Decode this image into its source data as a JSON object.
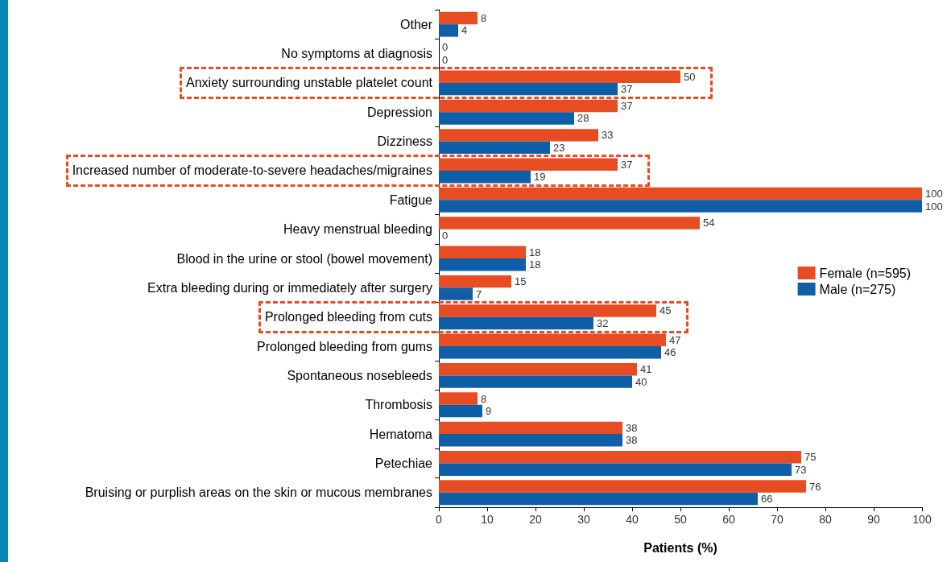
{
  "chart_data": {
    "type": "bar",
    "orientation": "horizontal",
    "xlabel": "Patients (%)",
    "categories": [
      "Other",
      "No symptoms at diagnosis",
      "Anxiety surrounding unstable platelet count",
      "Depression",
      "Dizziness",
      "Increased number of moderate-to-severe headaches/migraines",
      "Fatigue",
      "Heavy menstrual bleeding",
      "Blood in the urine or stool (bowel movement)",
      "Extra bleeding during or immediately after surgery",
      "Prolonged bleeding from cuts",
      "Prolonged bleeding from gums",
      "Spontaneous nosebleeds",
      "Thrombosis",
      "Hematoma",
      "Petechiae",
      "Bruising or purplish areas on the skin or mucous membranes"
    ],
    "series": [
      {
        "name": "Female (n=595)",
        "color": "#e84c22",
        "values": [
          8,
          0,
          50,
          37,
          33,
          37,
          100,
          54,
          18,
          15,
          45,
          47,
          41,
          8,
          38,
          75,
          76
        ]
      },
      {
        "name": "Male (n=275)",
        "color": "#0f5ea8",
        "values": [
          4,
          0,
          37,
          28,
          23,
          19,
          100,
          0,
          18,
          7,
          32,
          46,
          40,
          9,
          38,
          73,
          66
        ]
      }
    ],
    "xlim": [
      0,
      100
    ],
    "xticks": [
      0,
      10,
      20,
      30,
      40,
      50,
      60,
      70,
      80,
      90,
      100
    ],
    "data_labels": true,
    "legend": "right",
    "grid": false
  }
}
